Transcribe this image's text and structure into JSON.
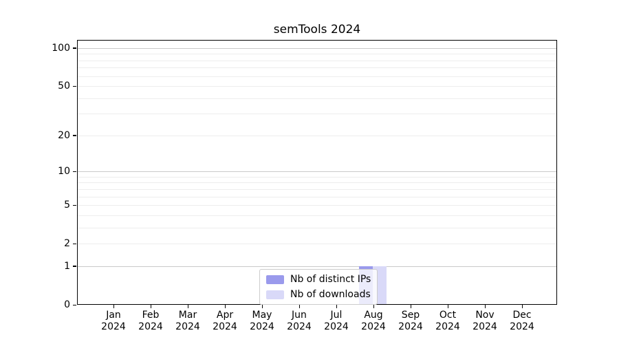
{
  "title": "semTools 2024",
  "chart_data": {
    "type": "bar",
    "title": "semTools 2024",
    "categories": [
      "Jan 2024",
      "Feb 2024",
      "Mar 2024",
      "Apr 2024",
      "May 2024",
      "Jun 2024",
      "Jul 2024",
      "Aug 2024",
      "Sep 2024",
      "Oct 2024",
      "Nov 2024",
      "Dec 2024"
    ],
    "series": [
      {
        "name": "Nb of distinct IPs",
        "color": "#9a9aec",
        "values": [
          0,
          0,
          0,
          0,
          0,
          0,
          0,
          1,
          0,
          0,
          0,
          0
        ]
      },
      {
        "name": "Nb of downloads",
        "color": "#d9d9f8",
        "values": [
          0,
          0,
          0,
          0,
          0,
          0,
          0,
          1,
          0,
          0,
          0,
          0
        ]
      }
    ],
    "xlabel": "",
    "ylabel": "",
    "yscale": "log1p",
    "ylim": [
      0,
      116
    ],
    "yticks": [
      0,
      1,
      2,
      5,
      10,
      20,
      50,
      100
    ],
    "grid_major": [
      1,
      10,
      100
    ],
    "grid_minor": [
      2,
      3,
      4,
      5,
      6,
      7,
      8,
      9,
      20,
      30,
      40,
      50,
      60,
      70,
      80,
      90
    ],
    "legend_position": "lower center inside"
  },
  "legend": {
    "items": [
      {
        "label": "Nb of distinct IPs",
        "color": "#9a9aec"
      },
      {
        "label": "Nb of downloads",
        "color": "#d9d9f8"
      }
    ]
  },
  "colors": {
    "background": "#ffffff",
    "grid_major": "#c9c9c9",
    "grid_minor": "#ededed",
    "spine": "#000000",
    "bar_distinct_ips": "#9a9aec",
    "bar_downloads": "#d9d9f8",
    "legend_border": "#cccccc",
    "text": "#000000"
  }
}
